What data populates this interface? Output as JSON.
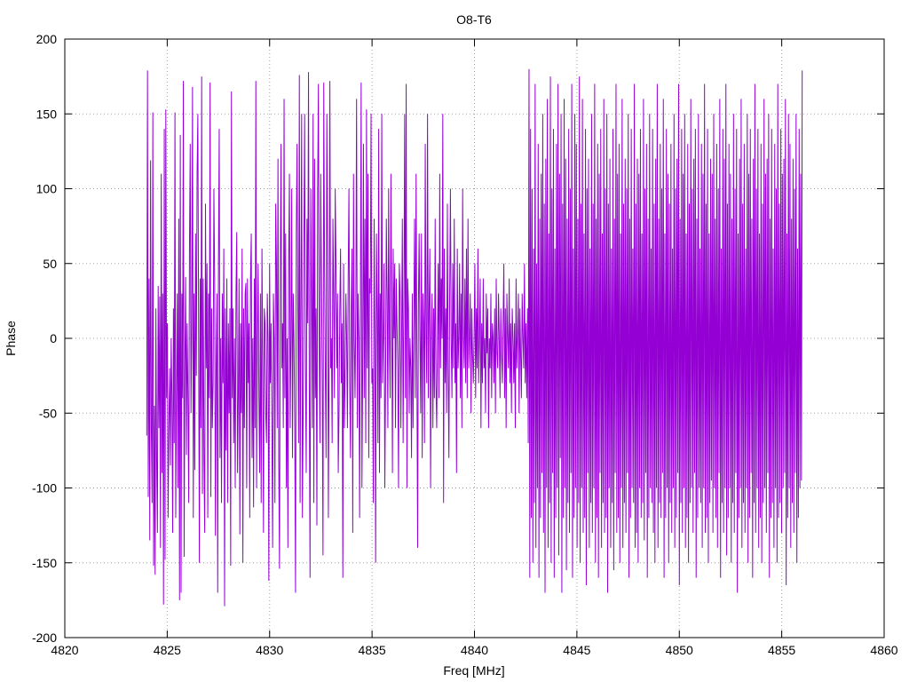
{
  "chart_data": {
    "type": "line",
    "title": "O8-T6",
    "xlabel": "Freq [MHz]",
    "ylabel": "Phase",
    "xlim": [
      4820,
      4860
    ],
    "ylim": [
      -200,
      200
    ],
    "xticks": [
      4820,
      4825,
      4830,
      4835,
      4840,
      4845,
      4850,
      4855,
      4860
    ],
    "yticks": [
      -200,
      -150,
      -100,
      -50,
      0,
      50,
      100,
      150,
      200
    ],
    "grid": true,
    "line_color": "#9400d3",
    "series": [
      {
        "x_start": 4824.0,
        "x_end": 4856.0,
        "samples": 1000,
        "values": [
          -65,
          179,
          -106,
          40,
          -135,
          119,
          -60,
          -110,
          151,
          -152,
          -45,
          -158,
          20,
          -80,
          -130,
          35,
          -60,
          28,
          -140,
          110,
          -90,
          30,
          -178,
          140,
          -148,
          153,
          -40,
          10,
          -120,
          -60,
          -20,
          -85,
          0,
          -40,
          -130,
          20,
          -70,
          151,
          -120,
          -40,
          30,
          -100,
          80,
          -175,
          136,
          -170,
          30,
          -40,
          172,
          -146,
          -20,
          41,
          -78,
          10,
          -40,
          -110,
          60,
          130,
          -50,
          10,
          168,
          -120,
          30,
          -88,
          70,
          -25,
          110,
          150,
          0,
          -150,
          40,
          -60,
          175,
          -104,
          40,
          -80,
          -130,
          90,
          -20,
          50,
          -120,
          30,
          -40,
          171,
          -106,
          20,
          -60,
          -30,
          100,
          40,
          -132,
          -20,
          30,
          -170,
          50,
          140,
          -80,
          0,
          -110,
          30,
          -30,
          60,
          -179,
          20,
          -75,
          40,
          -110,
          10,
          -50,
          20,
          -152,
          165,
          -40,
          20,
          -70,
          0,
          -100,
          30,
          71,
          -90,
          -40,
          40,
          -131,
          10,
          -50,
          60,
          -150,
          20,
          -60,
          30,
          37,
          -100,
          40,
          -30,
          10,
          -120,
          40,
          70,
          -80,
          0,
          -113,
          40,
          -60,
          172,
          -100,
          0,
          50,
          -40,
          -90,
          30,
          -110,
          60,
          -20,
          -130,
          20,
          10,
          -50,
          -70,
          30,
          0,
          -162,
          50,
          -30,
          10,
          -60,
          -140,
          30,
          0,
          -110,
          90,
          50,
          -60,
          120,
          -80,
          -154,
          40,
          130,
          -20,
          10,
          -60,
          160,
          -40,
          70,
          -100,
          0,
          -140,
          50,
          110,
          -60,
          0,
          100,
          -80,
          30,
          0,
          -60,
          -170,
          70,
          130,
          20,
          -70,
          176,
          -110,
          20,
          150,
          -120,
          -50,
          60,
          150,
          -20,
          -90,
          80,
          10,
          178,
          -30,
          -160,
          100,
          30,
          -60,
          150,
          -110,
          120,
          -40,
          20,
          -125,
          100,
          170,
          0,
          -70,
          110,
          40,
          -30,
          -145,
          171,
          50,
          -20,
          -80,
          150,
          60,
          -120,
          -10,
          172,
          -20,
          0,
          -70,
          80,
          30,
          -40,
          100,
          50,
          -20,
          30,
          -90,
          -50,
          20,
          60,
          -30,
          10,
          -160,
          50,
          -60,
          -20,
          30,
          0,
          -60,
          40,
          100,
          -30,
          -80,
          20,
          60,
          -130,
          110,
          0,
          -40,
          20,
          160,
          -60,
          30,
          0,
          -120,
          20,
          171,
          -100,
          -20,
          130,
          -40,
          80,
          -70,
          153,
          -20,
          110,
          -80,
          40,
          30,
          150,
          -30,
          -20,
          -110,
          80,
          0,
          -150,
          70,
          20,
          -70,
          140,
          -90,
          30,
          -40,
          150,
          -30,
          0,
          50,
          -100,
          -30,
          80,
          30,
          -60,
          100,
          0,
          -40,
          110,
          20,
          -90,
          60,
          0,
          50,
          -60,
          40,
          10,
          -20,
          -100,
          50,
          30,
          -60,
          0,
          80,
          -70,
          20,
          150,
          -40,
          170,
          -100,
          40,
          20,
          -50,
          0,
          -20,
          -80,
          30,
          -60,
          10,
          80,
          -40,
          110,
          -10,
          -140,
          20,
          70,
          0,
          -50,
          70,
          -80,
          30,
          10,
          -70,
          130,
          0,
          -30,
          150,
          -40,
          20,
          60,
          -100,
          0,
          30,
          -60,
          20,
          -40,
          80,
          -30,
          -60,
          0,
          50,
          -40,
          110,
          -20,
          40,
          0,
          150,
          -110,
          60,
          -30,
          20,
          -50,
          90,
          -20,
          -80,
          30,
          100,
          0,
          -40,
          50,
          -20,
          80,
          -30,
          10,
          -90,
          60,
          -20,
          0,
          50,
          -40,
          30,
          -60,
          100,
          0,
          -20,
          40,
          -30,
          60,
          -40,
          80,
          -20,
          0,
          30,
          -50,
          20,
          -10,
          -30,
          0,
          50,
          -40,
          20,
          -20,
          60,
          -30,
          0,
          40,
          -60,
          10,
          -30,
          40,
          -20,
          0,
          -50,
          30,
          -10,
          20,
          -60,
          0,
          -20,
          30,
          -40,
          10,
          0,
          -30,
          20,
          -50,
          40,
          -10,
          -20,
          30,
          0,
          -40,
          20,
          -10,
          -30,
          10,
          50,
          -40,
          20,
          -60,
          30,
          0,
          -20,
          40,
          -30,
          10,
          -50,
          20,
          0,
          -30,
          10,
          -60,
          40,
          -20,
          0,
          30,
          -50,
          20,
          -10,
          -40,
          30,
          0,
          -20,
          50,
          -30,
          10,
          -40,
          20,
          -70,
          180,
          -160,
          140,
          -120,
          100,
          -150,
          60,
          -110,
          170,
          -140,
          50,
          -100,
          130,
          -160,
          80,
          -120,
          110,
          -90,
          150,
          -130,
          90,
          -170,
          120,
          -100,
          160,
          -140,
          70,
          -110,
          175,
          -150,
          100,
          -90,
          140,
          -160,
          60,
          -120,
          130,
          -100,
          170,
          -145,
          110,
          -80,
          150,
          -170,
          90,
          -120,
          160,
          -100,
          120,
          -155,
          80,
          -110,
          140,
          -130,
          100,
          -90,
          170,
          -160,
          60,
          -120,
          150,
          -100,
          130,
          -140,
          80,
          -110,
          175,
          -150,
          90,
          -100,
          160,
          -130,
          70,
          -120,
          140,
          -165,
          100,
          -90,
          120,
          -140,
          60,
          -110,
          150,
          -130,
          90,
          -100,
          170,
          -150,
          80,
          -120,
          130,
          -160,
          110,
          -90,
          140,
          -140,
          70,
          -110,
          160,
          -130,
          100,
          -120,
          150,
          -170,
          90,
          -100,
          120,
          -140,
          60,
          -110,
          140,
          -155,
          80,
          -90,
          170,
          -130,
          110,
          -120,
          130,
          -150,
          70,
          -100,
          160,
          -140,
          90,
          -110,
          120,
          -130,
          100,
          -90,
          150,
          -160,
          80,
          -120,
          140,
          -100,
          60,
          -110,
          170,
          -140,
          90,
          -130,
          120,
          -150,
          110,
          -100,
          140,
          -120,
          70,
          -110,
          160,
          -135,
          100,
          -90,
          130,
          -160,
          80,
          -120,
          150,
          -100,
          60,
          -110,
          140,
          -130,
          90,
          -150,
          120,
          -100,
          170,
          -140,
          80,
          -110,
          130,
          -120,
          100,
          -90,
          160,
          -160,
          70,
          -120,
          140,
          -100,
          110,
          -150,
          90,
          -110,
          130,
          -130,
          60,
          -100,
          150,
          -140,
          100,
          -120,
          120,
          -90,
          170,
          -165,
          80,
          -110,
          140,
          -130,
          110,
          -100,
          150,
          -140,
          70,
          -120,
          130,
          -150,
          90,
          -110,
          160,
          -100,
          100,
          -130,
          120,
          -90,
          140,
          -160,
          80,
          -120,
          150,
          -100,
          60,
          -110,
          130,
          -140,
          110,
          -100,
          170,
          -130,
          90,
          -120,
          140,
          -150,
          70,
          -110,
          120,
          -95,
          110,
          -130,
          150,
          -100,
          80,
          -120,
          130,
          -140,
          100,
          -90,
          160,
          -160,
          60,
          -110,
          140,
          -130,
          120,
          -100,
          170,
          -145,
          90,
          -120,
          130,
          -100,
          110,
          -150,
          80,
          -110,
          150,
          -130,
          100,
          -90,
          140,
          -170,
          70,
          -120,
          120,
          -100,
          160,
          -140,
          90,
          -110,
          130,
          -130,
          60,
          -100,
          150,
          -150,
          110,
          -120,
          140,
          -90,
          80,
          -160,
          120,
          -110,
          170,
          -130,
          100,
          -100,
          140,
          -140,
          70,
          -120,
          130,
          -150,
          90,
          -110,
          160,
          -100,
          110,
          -130,
          120,
          -90,
          150,
          -160,
          80,
          -120,
          140,
          -110,
          60,
          -140,
          130,
          -100,
          100,
          -150,
          170,
          -120,
          90,
          -110,
          140,
          -130,
          110,
          -100,
          120,
          -90,
          160,
          -165,
          70,
          -120,
          150,
          -100,
          130,
          -140,
          80,
          -110,
          120,
          -130,
          100,
          -90,
          150,
          -150,
          60,
          -120,
          140,
          -100,
          110,
          -95,
          179
        ]
      }
    ]
  }
}
